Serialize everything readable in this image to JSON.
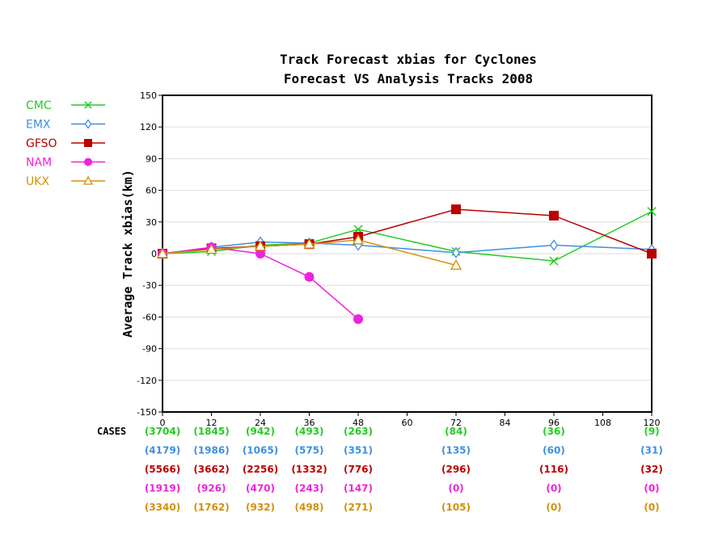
{
  "chart_data": {
    "type": "line",
    "title": "Track Forecast xbias for Cyclones",
    "subtitle": "Forecast VS Analysis Tracks 2008",
    "xlabel": "",
    "ylabel": "Average Track xbias(km)",
    "xlim": [
      0,
      120
    ],
    "ylim": [
      -150,
      150
    ],
    "x_ticks": [
      0,
      12,
      24,
      36,
      48,
      60,
      72,
      84,
      96,
      108,
      120
    ],
    "y_ticks": [
      -150,
      -120,
      -90,
      -60,
      -30,
      0,
      30,
      60,
      90,
      120,
      150
    ],
    "grid": true,
    "legend_position": "left",
    "cases_label": "CASES",
    "series": [
      {
        "name": "CMC",
        "color": "#22cc22",
        "marker": "x",
        "x": [
          0,
          12,
          24,
          36,
          48,
          72,
          96,
          120
        ],
        "y": [
          0,
          2,
          8,
          10,
          23,
          2,
          -7,
          40
        ],
        "cases": [
          "(3704)",
          "(1845)",
          "(942)",
          "(493)",
          "(263)",
          "(84)",
          "(36)",
          "(9)"
        ]
      },
      {
        "name": "EMX",
        "color": "#3d8fe0",
        "marker": "diamond-open",
        "x": [
          0,
          12,
          24,
          36,
          48,
          72,
          96,
          120
        ],
        "y": [
          0,
          6,
          11,
          10,
          8,
          1,
          8,
          4
        ],
        "cases": [
          "(4179)",
          "(1986)",
          "(1065)",
          "(575)",
          "(351)",
          "(135)",
          "(60)",
          "(31)"
        ]
      },
      {
        "name": "GFSO",
        "color": "#bb0000",
        "marker": "square",
        "x": [
          0,
          12,
          24,
          36,
          48,
          72,
          96,
          120
        ],
        "y": [
          0,
          5,
          7,
          9,
          16,
          42,
          36,
          0
        ],
        "cases": [
          "(5566)",
          "(3662)",
          "(2256)",
          "(1332)",
          "(776)",
          "(296)",
          "(116)",
          "(32)"
        ]
      },
      {
        "name": "NAM",
        "color": "#ee22dd",
        "marker": "circle",
        "x": [
          0,
          12,
          24,
          36,
          48
        ],
        "y": [
          0,
          6,
          0,
          -22,
          -62
        ],
        "cases": [
          "(1919)",
          "(926)",
          "(470)",
          "(243)",
          "(147)",
          "(0)",
          "(0)",
          "(0)"
        ]
      },
      {
        "name": "UKX",
        "color": "#d4900a",
        "marker": "triangle",
        "x": [
          0,
          12,
          24,
          36,
          48,
          72
        ],
        "y": [
          0,
          4,
          7,
          9,
          13,
          -11
        ],
        "cases": [
          "(3340)",
          "(1762)",
          "(932)",
          "(498)",
          "(271)",
          "(105)",
          "(0)",
          "(0)"
        ]
      }
    ],
    "cases_x": [
      0,
      12,
      24,
      36,
      48,
      72,
      96,
      120
    ]
  }
}
